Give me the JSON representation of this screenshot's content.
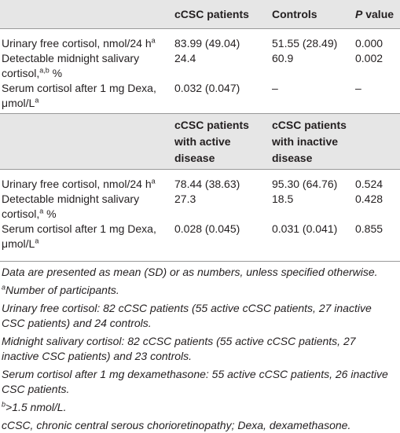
{
  "table": {
    "sections": [
      {
        "header": {
          "columns": [
            "cCSC patients",
            "Controls"
          ],
          "p_value": {
            "italic": "P",
            "rest": "value"
          }
        },
        "rows": [
          {
            "label": {
              "text": "Urinary free cortisol, nmol/24 h",
              "sup": "a"
            },
            "cells": [
              "83.99 (49.04)",
              "51.55 (28.49)",
              "0.000"
            ]
          },
          {
            "label": {
              "text": "Detectable midnight salivary cortisol,",
              "sup": "a,b",
              "after": "%"
            },
            "cells": [
              "24.4",
              "60.9",
              "0.002"
            ]
          },
          {
            "label": {
              "text": "Serum cortisol after 1 mg Dexa, μmol/L",
              "sup": "a"
            },
            "cells": [
              "0.032 (0.047)",
              "–",
              "–"
            ]
          }
        ]
      },
      {
        "header": {
          "columns": [
            "cCSC patients with active disease",
            "cCSC patients with inactive disease"
          ]
        },
        "rows": [
          {
            "label": {
              "text": "Urinary free cortisol, nmol/24 h",
              "sup": "a"
            },
            "cells": [
              "78.44 (38.63)",
              "95.30 (64.76)",
              "0.524"
            ]
          },
          {
            "label": {
              "text": "Detectable midnight salivary cortisol,",
              "sup": "a",
              "after": "%"
            },
            "cells": [
              "27.3",
              "18.5",
              "0.428"
            ]
          },
          {
            "label": {
              "text": "Serum cortisol after 1 mg Dexa, μmol/L",
              "sup": "a"
            },
            "cells": [
              "0.028 (0.045)",
              "0.031 (0.041)",
              "0.855"
            ]
          }
        ]
      }
    ]
  },
  "footnotes": [
    {
      "text": "Data are presented as mean (SD) or as numbers, unless specified otherwise."
    },
    {
      "sup": "a",
      "text": "Number of participants."
    },
    {
      "text": "Urinary free cortisol: 82 cCSC patients (55 active cCSC patients, 27 inactive CSC patients) and 24 controls."
    },
    {
      "text": "Midnight salivary cortisol: 82 cCSC patients (55 active cCSC patients, 27 inactive CSC patients) and 23 controls."
    },
    {
      "text": "Serum cortisol after 1 mg dexamethasone: 55 active cCSC patients, 26 inactive CSC patients."
    },
    {
      "sup": "b",
      "text": ">1.5 nmol/L."
    },
    {
      "text": "cCSC, chronic central serous chorioretinopathy; Dexa, dexamethasone."
    }
  ]
}
